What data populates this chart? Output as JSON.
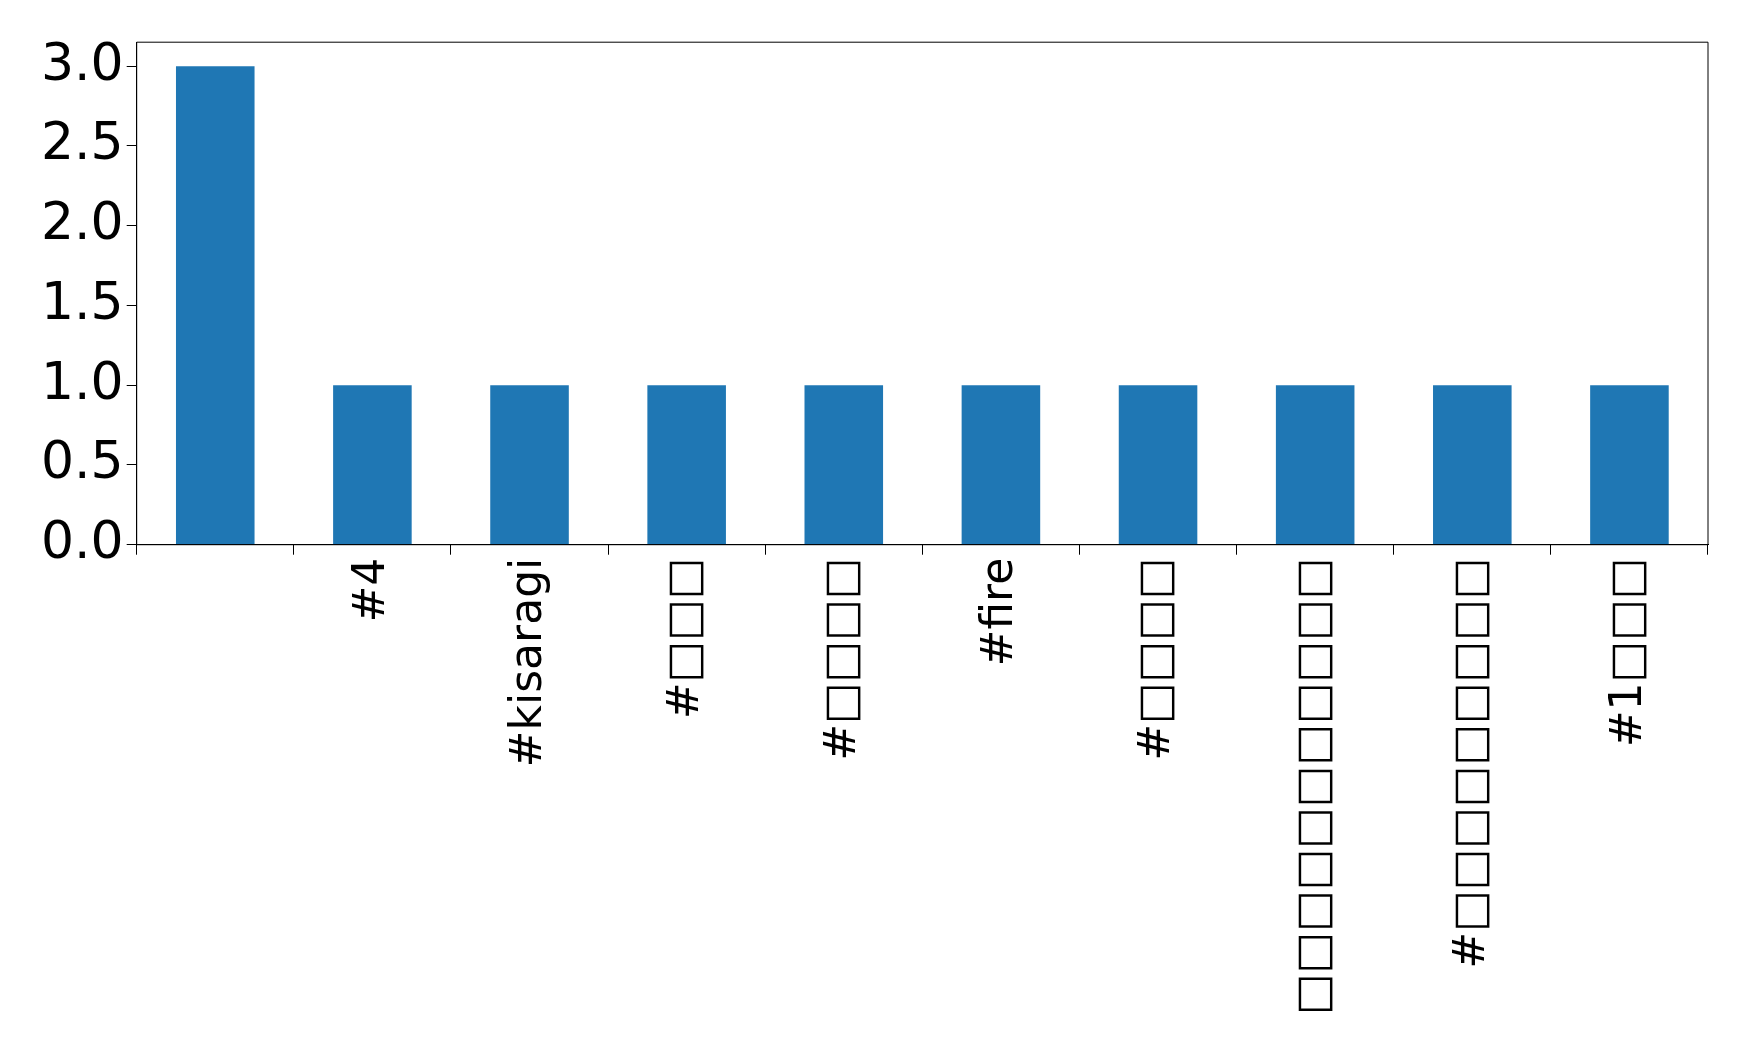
{
  "chart_data": {
    "type": "bar",
    "categories": [
      null,
      "#4",
      "#kisaragi",
      "#□□□",
      "#□□□□",
      "#fire",
      "#□□□□",
      "□□□□□□□□□□□",
      "#□□□□□□□□□",
      "#1□□□"
    ],
    "values": [
      3,
      1,
      1,
      1,
      1,
      1,
      1,
      1,
      1,
      1
    ],
    "color": "#1f77b4",
    "ylim": [
      0,
      3.15
    ],
    "yticks": [
      {
        "value": 0,
        "label": "0.0"
      },
      {
        "value": 0.5,
        "label": "0.5"
      },
      {
        "value": 1,
        "label": "1.0"
      },
      {
        "value": 1.5,
        "label": "1.5"
      },
      {
        "value": 2,
        "label": "2.0"
      },
      {
        "value": 2.5,
        "label": "2.5"
      },
      {
        "value": 3,
        "label": "3.0"
      }
    ],
    "grid": false,
    "legend": false
  }
}
